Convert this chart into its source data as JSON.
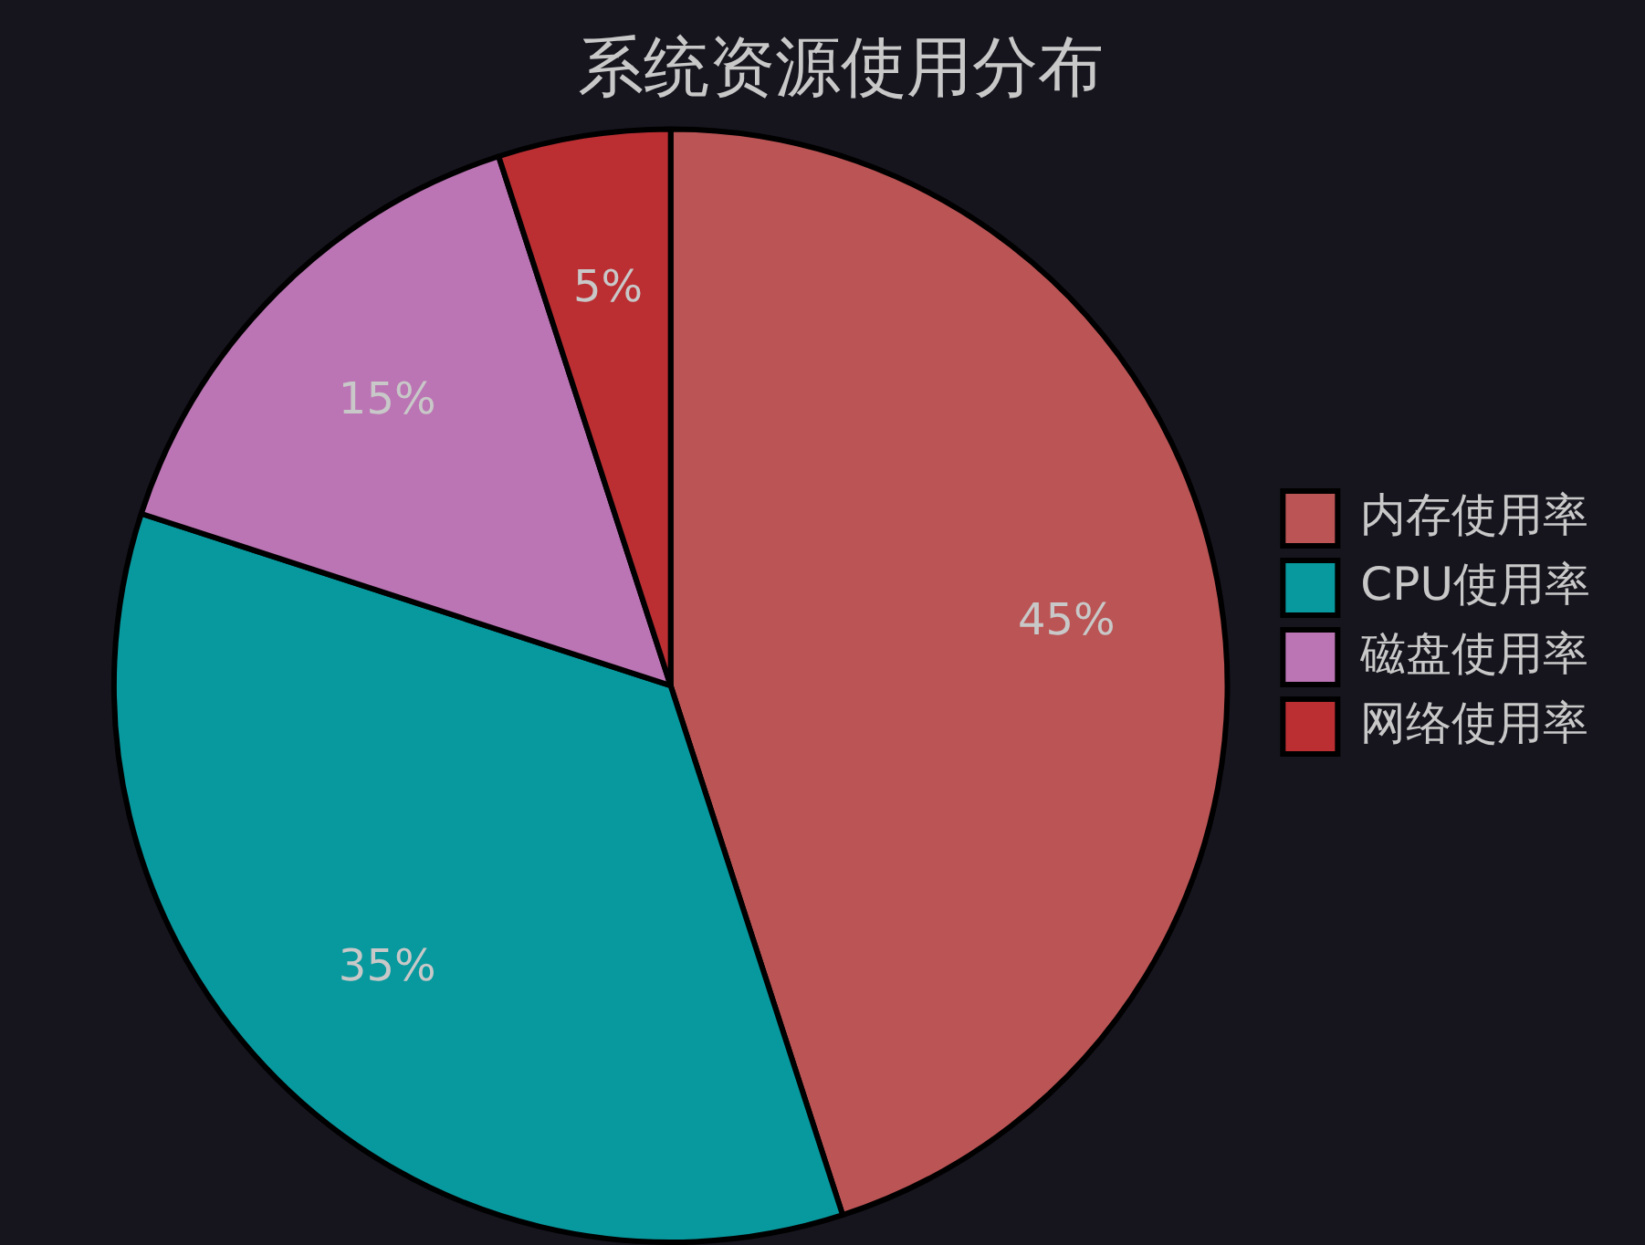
{
  "chart_data": {
    "type": "pie",
    "title": "系统资源使用分布",
    "categories": [
      "内存使用率",
      "CPU使用率",
      "磁盘使用率",
      "网络使用率"
    ],
    "values": [
      45,
      35,
      15,
      5
    ],
    "colors": [
      "#bb5455",
      "#08999e",
      "#bb75b4",
      "#bb2f33"
    ],
    "value_labels": [
      "45%",
      "35%",
      "15%",
      "5%"
    ],
    "legend": "right"
  }
}
